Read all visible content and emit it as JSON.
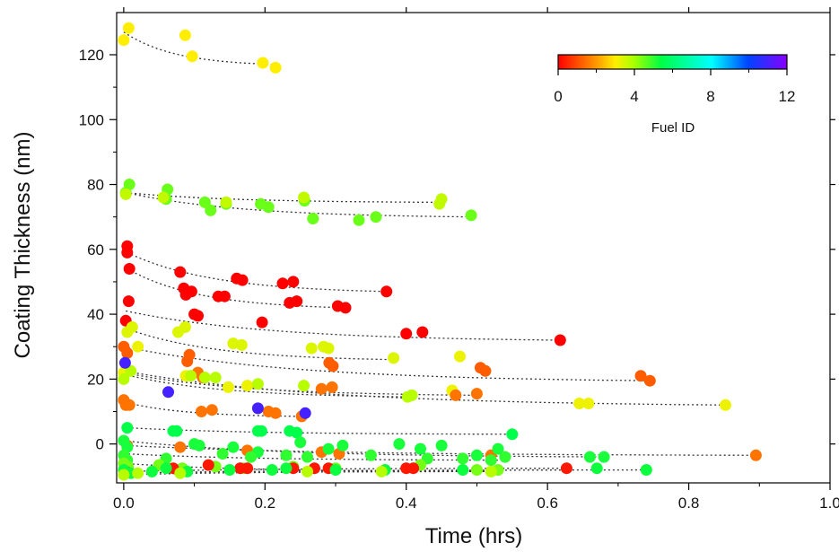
{
  "chart_data": {
    "type": "scatter",
    "title": "",
    "xlabel": "Time (hrs)",
    "ylabel": "Coating Thickness (nm)",
    "xlim": [
      -0.01,
      1.0
    ],
    "ylim": [
      -12,
      133
    ],
    "x_ticks": [
      "0.0",
      "0.2",
      "0.4",
      "0.6",
      "0.8",
      "1.0"
    ],
    "y_ticks": [
      "0",
      "20",
      "40",
      "60",
      "80",
      "100",
      "120"
    ],
    "grid": false,
    "colorbar": {
      "title": "Fuel ID",
      "range": [
        0,
        12
      ],
      "tick_labels": [
        "0",
        "4",
        "8",
        "12"
      ],
      "colormap": "rainbow (red-orange-yellow-green-cyan-blue-violet)",
      "placement": "top-right"
    },
    "fit_line_style": "dotted, dark gray",
    "series": [
      {
        "fuel": 3,
        "x": [
          0.0,
          0.007,
          0.087,
          0.097,
          0.197,
          0.215
        ],
        "y": [
          124.5,
          128.2,
          126.0,
          119.5,
          117.5,
          116.0
        ],
        "fit": [
          127.0,
          117.0
        ]
      },
      {
        "fuel": 4.5,
        "x": [
          0.003,
          0.008,
          0.06,
          0.062,
          0.115,
          0.123,
          0.145,
          0.194,
          0.205,
          0.256,
          0.268,
          0.333,
          0.357,
          0.492
        ],
        "y": [
          77.5,
          80.0,
          75.5,
          78.5,
          74.5,
          72.0,
          74.0,
          74.0,
          73.0,
          75.0,
          69.5,
          69.0,
          70.0,
          70.5
        ],
        "fit": [
          77.5,
          70.0
        ]
      },
      {
        "fuel": 3.7,
        "x": [
          0.003,
          0.056,
          0.145,
          0.255,
          0.447,
          0.45
        ],
        "y": [
          77.0,
          76.0,
          74.5,
          76.0,
          74.0,
          75.5
        ],
        "fit": [
          77.5,
          74.5
        ]
      },
      {
        "fuel": 0,
        "x": [
          0.005,
          0.08,
          0.16,
          0.168,
          0.225,
          0.24,
          0.372
        ],
        "y": [
          59.0,
          53.0,
          51.0,
          50.5,
          49.5,
          50.0,
          47.0
        ],
        "fit": [
          59.0,
          47.0
        ]
      },
      {
        "fuel": 0,
        "x": [
          0.005,
          0.008,
          0.085,
          0.088,
          0.096,
          0.134,
          0.143,
          0.235,
          0.245,
          0.303,
          0.314
        ],
        "y": [
          61.0,
          54.0,
          48.0,
          46.0,
          47.0,
          45.5,
          45.5,
          43.5,
          44.0,
          42.5,
          42.0
        ],
        "fit": [
          54.0,
          42.0
        ]
      },
      {
        "fuel": 0,
        "x": [
          0.003,
          0.007,
          0.1,
          0.105,
          0.196,
          0.4,
          0.423,
          0.618
        ],
        "y": [
          38.0,
          44.0,
          40.0,
          39.5,
          37.5,
          34.0,
          34.5,
          32.0
        ],
        "fit": [
          41.0,
          32.0
        ]
      },
      {
        "fuel": 3.4,
        "x": [
          0.005,
          0.012,
          0.077,
          0.087,
          0.155,
          0.167,
          0.266,
          0.283,
          0.29,
          0.382
        ],
        "y": [
          34.5,
          36.0,
          34.5,
          36.0,
          31.0,
          30.5,
          29.5,
          30.0,
          29.5,
          26.5
        ],
        "fit": [
          35.5,
          26.0
        ]
      },
      {
        "fuel": 1.2,
        "x": [
          0.0,
          0.005,
          0.09,
          0.093,
          0.291,
          0.296,
          0.505,
          0.512,
          0.732,
          0.745
        ],
        "y": [
          30.0,
          28.0,
          25.5,
          27.5,
          25.0,
          24.0,
          23.5,
          22.5,
          21.0,
          19.5
        ],
        "fit": [
          30.0,
          19.5
        ]
      },
      {
        "fuel": 3.2,
        "x": [
          0.0,
          0.02,
          0.088,
          0.148,
          0.175,
          0.476,
          0.465,
          0.645,
          0.658,
          0.852
        ],
        "y": [
          22.0,
          30.0,
          21.0,
          17.5,
          18.0,
          27.0,
          16.5,
          12.5,
          12.5,
          12.0
        ],
        "fit": [
          22.5,
          12.0
        ]
      },
      {
        "fuel": 1.5,
        "x": [
          0.0,
          0.003,
          0.105,
          0.112,
          0.28,
          0.295,
          0.47,
          0.5
        ],
        "y": [
          13.5,
          12.0,
          22.0,
          20.5,
          17.0,
          17.5,
          15.0,
          15.5
        ],
        "fit": [
          22.0,
          15.0
        ]
      },
      {
        "fuel": 3.8,
        "x": [
          0.0,
          0.01,
          0.095,
          0.115,
          0.13,
          0.19,
          0.255,
          0.402,
          0.408
        ],
        "y": [
          20.0,
          22.5,
          21.0,
          20.5,
          20.5,
          18.5,
          18.0,
          14.5,
          15.0
        ],
        "fit": [
          21.5,
          14.5
        ]
      },
      {
        "fuel": 1.5,
        "x": [
          0.0,
          0.008,
          0.11,
          0.125,
          0.205,
          0.215,
          0.252
        ],
        "y": [
          13.5,
          12.0,
          10.0,
          10.5,
          10.0,
          9.5,
          8.5
        ],
        "fit": [
          13.0,
          8.5
        ]
      },
      {
        "fuel": 11,
        "x": [
          0.002,
          0.063,
          0.19,
          0.257
        ],
        "y": [
          25.0,
          16.0,
          11.0,
          9.5
        ]
      },
      {
        "fuel": 5.5,
        "x": [
          0.005,
          0.07,
          0.075,
          0.19,
          0.195,
          0.235,
          0.245,
          0.55
        ],
        "y": [
          5.0,
          4.0,
          4.0,
          4.0,
          4.0,
          4.0,
          3.5,
          3.0
        ],
        "fit": [
          5.0,
          3.0
        ]
      },
      {
        "fuel": 1.5,
        "x": [
          0.005,
          0.08,
          0.175,
          0.28,
          0.305,
          0.52,
          0.895
        ],
        "y": [
          -0.5,
          -1.0,
          -2.0,
          -2.5,
          -3.0,
          -3.5,
          -3.5
        ],
        "fit": [
          -0.5,
          -3.5
        ]
      },
      {
        "fuel": 5.2,
        "x": [
          0.0,
          0.005,
          0.1,
          0.107,
          0.155,
          0.19,
          0.25,
          0.29,
          0.31,
          0.39,
          0.42,
          0.45,
          0.5,
          0.53,
          0.66,
          0.68
        ],
        "y": [
          1.0,
          -1.0,
          0.0,
          -0.5,
          -1.0,
          -2.5,
          0.5,
          -1.5,
          -0.5,
          0.0,
          -1.5,
          -0.5,
          -3.5,
          -1.5,
          -4.0,
          -4.0
        ],
        "fit": [
          1.0,
          -4.0
        ]
      },
      {
        "fuel": 5.0,
        "x": [
          0.0,
          0.005,
          0.06,
          0.14,
          0.18,
          0.23,
          0.26,
          0.35,
          0.43,
          0.48,
          0.52,
          0.54
        ],
        "y": [
          -3.5,
          -5.0,
          -4.5,
          -3.0,
          -4.0,
          -3.5,
          -4.0,
          -3.5,
          -4.5,
          -4.5,
          -5.0,
          -4.0
        ],
        "fit": [
          -3.0,
          -5.0
        ]
      },
      {
        "fuel": 4.4,
        "x": [
          0.0,
          0.006,
          0.05,
          0.083,
          0.13,
          0.17,
          0.24,
          0.3,
          0.42,
          0.5,
          0.53
        ],
        "y": [
          -6.0,
          -7.0,
          -6.5,
          -7.5,
          -7.0,
          -7.5,
          -7.0,
          -7.5,
          -6.5,
          -8.0,
          -8.0
        ],
        "fit": [
          -6.0,
          -8.5
        ]
      },
      {
        "fuel": 0.3,
        "x": [
          0.003,
          0.07,
          0.12,
          0.165,
          0.175,
          0.24,
          0.27,
          0.29,
          0.4,
          0.41,
          0.627
        ],
        "y": [
          -8.5,
          -7.5,
          -6.5,
          -7.5,
          -7.5,
          -7.5,
          -7.5,
          -7.5,
          -7.5,
          -7.5,
          -7.5
        ],
        "fit": [
          -8.5,
          -7.5
        ]
      },
      {
        "fuel": 5.3,
        "x": [
          0.0,
          0.01,
          0.04,
          0.06,
          0.09,
          0.15,
          0.21,
          0.23,
          0.3,
          0.37,
          0.48,
          0.67,
          0.74
        ],
        "y": [
          -8.0,
          -9.0,
          -8.5,
          -7.5,
          -8.5,
          -8.0,
          -8.0,
          -7.5,
          -8.0,
          -8.0,
          -8.0,
          -7.5,
          -8.0
        ],
        "fit": [
          -9.0,
          -8.0
        ]
      },
      {
        "fuel": 3.8,
        "x": [
          0.0,
          0.02,
          0.08,
          0.26,
          0.365,
          0.52
        ],
        "y": [
          -9.5,
          -9.0,
          -9.0,
          -8.5,
          -8.5,
          -8.5
        ],
        "fit": [
          -9.5,
          -8.5
        ]
      }
    ]
  }
}
